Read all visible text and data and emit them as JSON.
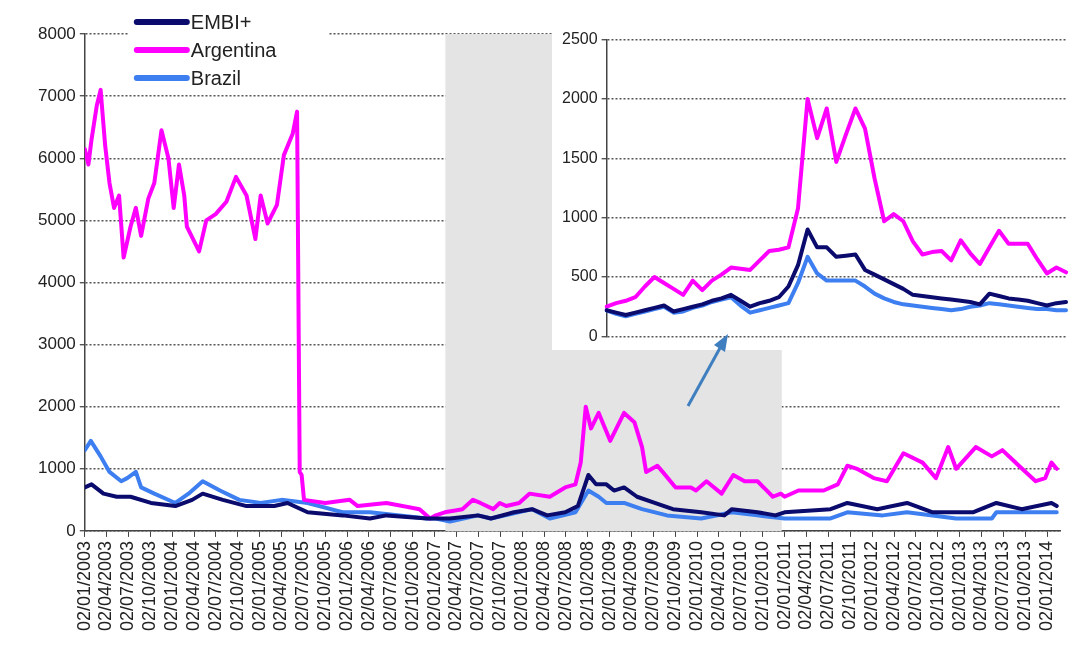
{
  "chart_data": [
    {
      "type": "line",
      "xlim": [
        "2003-01-02",
        "2014-02-24"
      ],
      "ylim": [
        0,
        8000
      ],
      "yticks": [
        0,
        1000,
        2000,
        3000,
        4000,
        5000,
        6000,
        7000,
        8000
      ],
      "xticks": [
        {
          "value": "2003-01-02",
          "label": "02/01/2003"
        },
        {
          "value": "2003-04-02",
          "label": "02/04/2003"
        },
        {
          "value": "2003-07-02",
          "label": "02/07/2003"
        },
        {
          "value": "2003-10-02",
          "label": "02/10/2003"
        },
        {
          "value": "2004-01-02",
          "label": "02/01/2004"
        },
        {
          "value": "2004-04-02",
          "label": "02/04/2004"
        },
        {
          "value": "2004-07-02",
          "label": "02/07/2004"
        },
        {
          "value": "2004-10-02",
          "label": "02/10/2004"
        },
        {
          "value": "2005-01-02",
          "label": "02/01/2005"
        },
        {
          "value": "2005-04-02",
          "label": "02/04/2005"
        },
        {
          "value": "2005-07-02",
          "label": "02/07/2005"
        },
        {
          "value": "2005-10-02",
          "label": "02/10/2005"
        },
        {
          "value": "2006-01-02",
          "label": "02/01/2006"
        },
        {
          "value": "2006-04-02",
          "label": "02/04/2006"
        },
        {
          "value": "2006-07-02",
          "label": "02/07/2006"
        },
        {
          "value": "2006-10-02",
          "label": "02/10/2006"
        },
        {
          "value": "2007-01-02",
          "label": "02/01/2007"
        },
        {
          "value": "2007-04-02",
          "label": "02/04/2007"
        },
        {
          "value": "2007-07-02",
          "label": "02/07/2007"
        },
        {
          "value": "2007-10-02",
          "label": "02/10/2007"
        },
        {
          "value": "2008-01-02",
          "label": "02/01/2008"
        },
        {
          "value": "2008-04-02",
          "label": "02/04/2008"
        },
        {
          "value": "2008-07-02",
          "label": "02/07/2008"
        },
        {
          "value": "2008-10-02",
          "label": "02/10/2008"
        },
        {
          "value": "2009-01-02",
          "label": "02/01/2009"
        },
        {
          "value": "2009-04-02",
          "label": "02/04/2009"
        },
        {
          "value": "2009-07-02",
          "label": "02/07/2009"
        },
        {
          "value": "2009-10-02",
          "label": "02/10/2009"
        },
        {
          "value": "2010-01-02",
          "label": "02/01/2010"
        },
        {
          "value": "2010-04-02",
          "label": "02/04/2010"
        },
        {
          "value": "2010-07-02",
          "label": "02/07/2010"
        },
        {
          "value": "2010-10-02",
          "label": "02/10/2010"
        },
        {
          "value": "2011-01-02",
          "label": "02/01/2011"
        },
        {
          "value": "2011-04-02",
          "label": "02/04/2011"
        },
        {
          "value": "2011-07-02",
          "label": "02/07/2011"
        },
        {
          "value": "2011-10-02",
          "label": "02/10/2011"
        },
        {
          "value": "2012-01-02",
          "label": "02/01/2012"
        },
        {
          "value": "2012-04-02",
          "label": "02/04/2012"
        },
        {
          "value": "2012-07-02",
          "label": "02/07/2012"
        },
        {
          "value": "2012-10-02",
          "label": "02/10/2012"
        },
        {
          "value": "2013-01-02",
          "label": "02/01/2013"
        },
        {
          "value": "2013-04-02",
          "label": "02/04/2013"
        },
        {
          "value": "2013-07-02",
          "label": "02/07/2013"
        },
        {
          "value": "2013-10-02",
          "label": "02/10/2013"
        },
        {
          "value": "2014-01-02",
          "label": "02/01/2014"
        }
      ],
      "grid": "y",
      "legend": "top left",
      "marker": "none",
      "line_style": "solid",
      "bands": [
        {
          "axis": "x",
          "from": "2007-02-15",
          "to": "2010-12-20",
          "color": "#e4e4e4"
        }
      ],
      "series": [
        {
          "name": "EMBI+",
          "color": "#0b0b6e",
          "x": [
            "2003-01-02",
            "2003-01-30",
            "2003-03-21",
            "2003-05-15",
            "2003-07-12",
            "2003-10-05",
            "2004-01-15",
            "2004-03-25",
            "2004-05-08",
            "2004-07-31",
            "2004-11-07",
            "2005-03-03",
            "2005-04-27",
            "2005-07-20",
            "2005-12-13",
            "2006-04-06",
            "2006-06-14",
            "2006-12-01",
            "2007-01-06",
            "2007-03-06",
            "2007-07-01",
            "2007-08-24",
            "2007-11-28",
            "2008-02-12",
            "2008-04-15",
            "2008-06-29",
            "2008-08-21",
            "2008-10-04",
            "2008-11-05",
            "2008-12-18",
            "2009-01-19",
            "2009-03-02",
            "2009-04-25",
            "2009-07-08",
            "2009-09-22",
            "2010-01-18",
            "2010-04-24",
            "2010-05-26",
            "2010-09-10",
            "2010-11-24",
            "2011-01-01",
            "2011-07-12",
            "2011-09-20",
            "2012-01-23",
            "2012-05-26",
            "2012-09-10",
            "2013-02-25",
            "2013-06-03",
            "2013-09-17",
            "2014-01-19",
            "2014-02-10"
          ],
          "values": [
            700,
            750,
            600,
            550,
            550,
            450,
            400,
            500,
            600,
            500,
            400,
            400,
            450,
            300,
            250,
            200,
            250,
            200,
            200,
            200,
            250,
            200,
            300,
            350,
            250,
            300,
            400,
            900,
            750,
            750,
            650,
            700,
            550,
            450,
            350,
            300,
            250,
            350,
            300,
            250,
            300,
            350,
            450,
            350,
            450,
            300,
            300,
            450,
            350,
            450,
            400
          ]
        },
        {
          "name": "Argentina",
          "color": "#ff00ff",
          "x": [
            "2003-01-02",
            "2003-01-17",
            "2003-01-30",
            "2003-02-21",
            "2003-03-09",
            "2003-03-28",
            "2003-04-15",
            "2003-05-04",
            "2003-05-25",
            "2003-06-13",
            "2003-07-12",
            "2003-08-03",
            "2003-08-25",
            "2003-09-24",
            "2003-10-19",
            "2003-11-18",
            "2003-12-17",
            "2004-01-08",
            "2004-01-30",
            "2004-02-21",
            "2004-03-03",
            "2004-04-23",
            "2004-05-23",
            "2004-07-01",
            "2004-08-15",
            "2004-09-24",
            "2004-11-07",
            "2004-12-14",
            "2005-01-05",
            "2005-02-03",
            "2005-03-14",
            "2005-04-12",
            "2005-05-19",
            "2005-06-06",
            "2005-06-17",
            "2005-06-25",
            "2005-07-05",
            "2005-10-02",
            "2006-01-12",
            "2006-02-14",
            "2006-06-14",
            "2006-10-30",
            "2006-12-13",
            "2007-01-06",
            "2007-02-13",
            "2007-04-27",
            "2007-06-10",
            "2007-07-11",
            "2007-09-03",
            "2007-09-30",
            "2007-10-27",
            "2007-12-20",
            "2008-02-01",
            "2008-04-26",
            "2008-06-29",
            "2008-08-11",
            "2008-09-02",
            "2008-09-23",
            "2008-10-15",
            "2008-11-16",
            "2009-01-03",
            "2009-03-02",
            "2009-04-14",
            "2009-05-16",
            "2009-06-02",
            "2009-07-19",
            "2009-08-10",
            "2009-10-03",
            "2009-12-06",
            "2009-12-27",
            "2010-02-09",
            "2010-04-13",
            "2010-06-01",
            "2010-07-18",
            "2010-09-10",
            "2010-11-13",
            "2010-12-16",
            "2011-01-01",
            "2011-02-28",
            "2011-06-13",
            "2011-08-11",
            "2011-09-20",
            "2011-10-30",
            "2012-01-08",
            "2012-03-03",
            "2012-05-11",
            "2012-07-30",
            "2012-09-24",
            "2012-11-14",
            "2012-12-17",
            "2013-03-09",
            "2013-05-15",
            "2013-06-28",
            "2013-09-05",
            "2013-11-14",
            "2013-12-24",
            "2014-01-19",
            "2014-02-10"
          ],
          "values": [
            6150,
            5900,
            6300,
            6850,
            7100,
            6200,
            5600,
            5200,
            5400,
            4400,
            4900,
            5200,
            4750,
            5350,
            5600,
            6450,
            6000,
            5200,
            5900,
            5400,
            4900,
            4500,
            5000,
            5100,
            5300,
            5700,
            5400,
            4700,
            5400,
            4950,
            5250,
            6050,
            6400,
            6750,
            950,
            900,
            500,
            450,
            500,
            400,
            450,
            350,
            200,
            250,
            300,
            350,
            500,
            450,
            350,
            450,
            400,
            450,
            600,
            550,
            700,
            750,
            1100,
            2000,
            1650,
            1900,
            1450,
            1900,
            1750,
            1350,
            950,
            1050,
            950,
            700,
            700,
            650,
            800,
            600,
            900,
            800,
            800,
            550,
            600,
            550,
            650,
            650,
            750,
            1050,
            1000,
            850,
            800,
            1250,
            1100,
            850,
            1350,
            1000,
            1350,
            1200,
            1300,
            1050,
            800,
            850,
            1100,
            1000
          ]
        },
        {
          "name": "Brazil",
          "color": "#3d7ef0",
          "x": [
            "2003-01-02",
            "2003-01-27",
            "2003-03-09",
            "2003-04-15",
            "2003-06-03",
            "2003-06-28",
            "2003-08-03",
            "2003-08-25",
            "2003-10-19",
            "2004-01-15",
            "2004-03-10",
            "2004-05-08",
            "2004-07-19",
            "2004-10-08",
            "2005-01-05",
            "2005-04-02",
            "2005-07-20",
            "2005-12-13",
            "2006-04-06",
            "2006-12-01",
            "2007-01-06",
            "2007-03-06",
            "2007-07-01",
            "2007-08-24",
            "2008-02-12",
            "2008-04-26",
            "2008-08-11",
            "2008-10-04",
            "2008-11-16",
            "2008-12-18",
            "2009-03-02",
            "2009-05-16",
            "2009-08-28",
            "2010-01-18",
            "2010-05-26",
            "2010-09-10",
            "2011-01-01",
            "2011-07-12",
            "2011-09-20",
            "2012-02-15",
            "2012-05-26",
            "2012-12-17",
            "2013-05-15",
            "2013-06-03",
            "2014-01-19",
            "2014-02-10"
          ],
          "values": [
            1300,
            1450,
            1200,
            950,
            800,
            850,
            950,
            700,
            600,
            450,
            600,
            800,
            650,
            500,
            450,
            500,
            450,
            300,
            300,
            200,
            200,
            150,
            250,
            200,
            350,
            200,
            300,
            650,
            550,
            450,
            450,
            350,
            250,
            200,
            300,
            250,
            200,
            200,
            300,
            250,
            300,
            200,
            200,
            300,
            300,
            300
          ]
        }
      ]
    },
    {
      "type": "line",
      "categories": [
        null,
        null,
        null,
        null,
        null,
        null,
        null,
        null,
        null,
        null,
        null,
        null,
        null,
        null,
        null,
        null,
        null,
        null,
        null,
        null,
        null,
        null,
        null,
        null,
        null,
        null,
        null,
        null,
        null,
        null,
        null,
        null,
        null,
        null,
        null,
        null,
        null,
        null,
        null,
        null,
        null,
        null,
        null,
        null,
        null,
        null,
        null,
        null,
        null
      ],
      "ylim": [
        0,
        2500
      ],
      "yticks": [
        0,
        500,
        1000,
        1500,
        2000,
        2500
      ],
      "tick_labels": "y",
      "grid": "y",
      "marker": "none",
      "line_style": "solid",
      "series": [
        {
          "color": "#0b0b6e",
          "values": [
            220,
            200,
            180,
            200,
            220,
            240,
            260,
            210,
            230,
            250,
            270,
            300,
            320,
            350,
            300,
            250,
            280,
            300,
            330,
            420,
            600,
            900,
            750,
            750,
            670,
            680,
            690,
            560,
            520,
            480,
            440,
            400,
            350,
            340,
            330,
            320,
            310,
            300,
            290,
            270,
            360,
            340,
            320,
            310,
            300,
            280,
            260,
            280,
            290
          ]
        },
        {
          "color": "#ff00ff",
          "values": [
            250,
            280,
            300,
            330,
            420,
            500,
            450,
            400,
            350,
            470,
            390,
            470,
            520,
            580,
            570,
            560,
            640,
            720,
            730,
            750,
            1080,
            2000,
            1670,
            1920,
            1470,
            1700,
            1920,
            1750,
            1330,
            970,
            1030,
            970,
            800,
            690,
            710,
            720,
            640,
            810,
            700,
            610,
            750,
            890,
            780,
            780,
            780,
            650,
            530,
            580,
            540
          ]
        },
        {
          "color": "#3d7ef0",
          "values": [
            220,
            190,
            170,
            190,
            210,
            230,
            250,
            200,
            210,
            240,
            260,
            290,
            310,
            330,
            260,
            200,
            220,
            240,
            260,
            280,
            450,
            670,
            530,
            470,
            470,
            470,
            470,
            420,
            360,
            320,
            290,
            270,
            260,
            250,
            240,
            230,
            220,
            230,
            250,
            260,
            280,
            270,
            260,
            250,
            240,
            230,
            230,
            220,
            220
          ]
        }
      ]
    }
  ]
}
